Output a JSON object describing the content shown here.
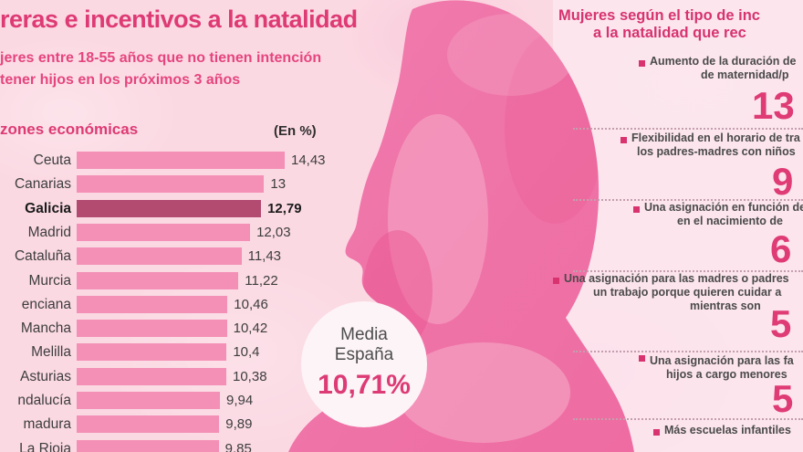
{
  "title": "reras e incentivos a la natalidad",
  "subtitle_line1": "jeres entre 18-55 años que no tienen intención",
  "subtitle_line2": "tener hijos en los próximos 3 años",
  "colors": {
    "accent_magenta": "#de3a74",
    "bar_pink": "#f48fb5",
    "bar_highlight": "#b34b71",
    "background_pink": "#fbd9e3"
  },
  "chart_data": {
    "type": "bar",
    "title": "zones económicas",
    "unit_label": "(En %)",
    "categories": [
      "Ceuta",
      "Canarias",
      "Galicia",
      "Madrid",
      "Cataluña",
      "Murcia",
      "enciana",
      "Mancha",
      "Melilla",
      "Asturias",
      "ndalucía",
      "madura",
      "La Rioja"
    ],
    "values": [
      14.43,
      13,
      12.79,
      12.03,
      11.43,
      11.22,
      10.46,
      10.42,
      10.4,
      10.38,
      9.94,
      9.89,
      9.85
    ],
    "value_labels": [
      "14,43",
      "13",
      "12,79",
      "12,03",
      "11,43",
      "11,22",
      "10,46",
      "10,42",
      "10,4",
      "10,38",
      "9,94",
      "9,89",
      "9,85"
    ],
    "highlight_index": 2,
    "xlim": [
      0,
      15
    ],
    "average_label": "Media España",
    "average_value": "10,71%"
  },
  "average_badge": {
    "line1": "Media",
    "line2": "España",
    "value": "10,71%"
  },
  "right_panel": {
    "header_line1": "Mujeres según el tipo de inc",
    "header_line2": "a la natalidad que rec",
    "items": [
      {
        "lines": [
          "Aumento de la duración de",
          "de maternidad/p"
        ],
        "value": "13"
      },
      {
        "lines": [
          "Flexibilidad en el horario de tra",
          "los padres-madres con niños"
        ],
        "value": "9"
      },
      {
        "lines": [
          "Una asignación en función de",
          "en el nacimiento de"
        ],
        "value": "6"
      },
      {
        "lines": [
          "Una asignación para las madres o padres",
          "un trabajo porque quieren cuidar a",
          "mientras son"
        ],
        "value": "5"
      },
      {
        "lines": [
          "Una asignación para las fa",
          "hijos a cargo menores"
        ],
        "value": "5"
      },
      {
        "lines": [
          "Más escuelas infantiles"
        ],
        "value": ""
      }
    ]
  }
}
